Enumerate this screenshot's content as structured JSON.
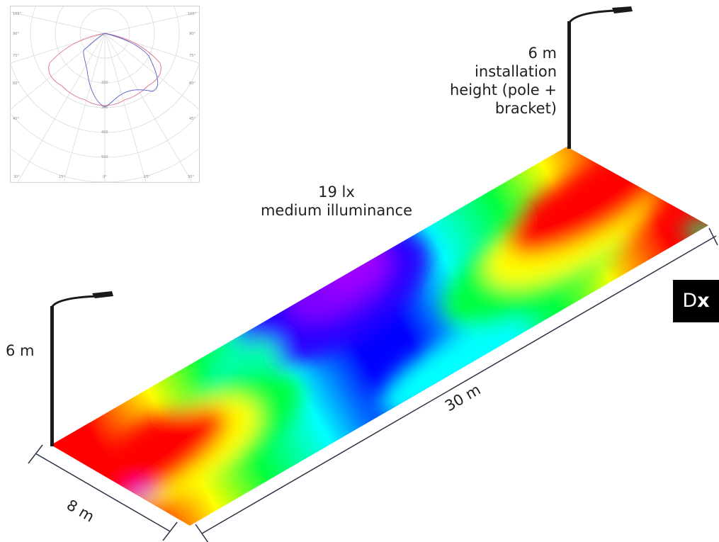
{
  "labels": {
    "pole_height_right": [
      "6 m",
      "installation",
      "height (pole +",
      "bracket)"
    ],
    "pole_height_left": "6 m",
    "illuminance_value": "19 lx",
    "illuminance_caption": "medium illuminance",
    "length": "30 m",
    "width": "8 m"
  },
  "polar_diagram": {
    "angle_labels_top": [
      "105°",
      "105°"
    ],
    "angle_labels_side": [
      "90°",
      "75°",
      "60°",
      "45°",
      "90°",
      "75°",
      "60°",
      "45°"
    ],
    "angle_labels_bottom": [
      "30°",
      "15°",
      "0°",
      "15°",
      "30°"
    ],
    "radial_labels": [
      "200",
      "300",
      "400",
      "500"
    ]
  },
  "logo": {
    "prefix": "D",
    "suffix": "x"
  },
  "colors": {
    "high": "#ff0000",
    "yellow": "#ffff00",
    "green": "#00ff40",
    "cyan": "#00ffff",
    "blue": "#0000ff",
    "violet": "#8a00ff",
    "pole": "#1a1a1a",
    "dimension_line": "#2a3346"
  }
}
